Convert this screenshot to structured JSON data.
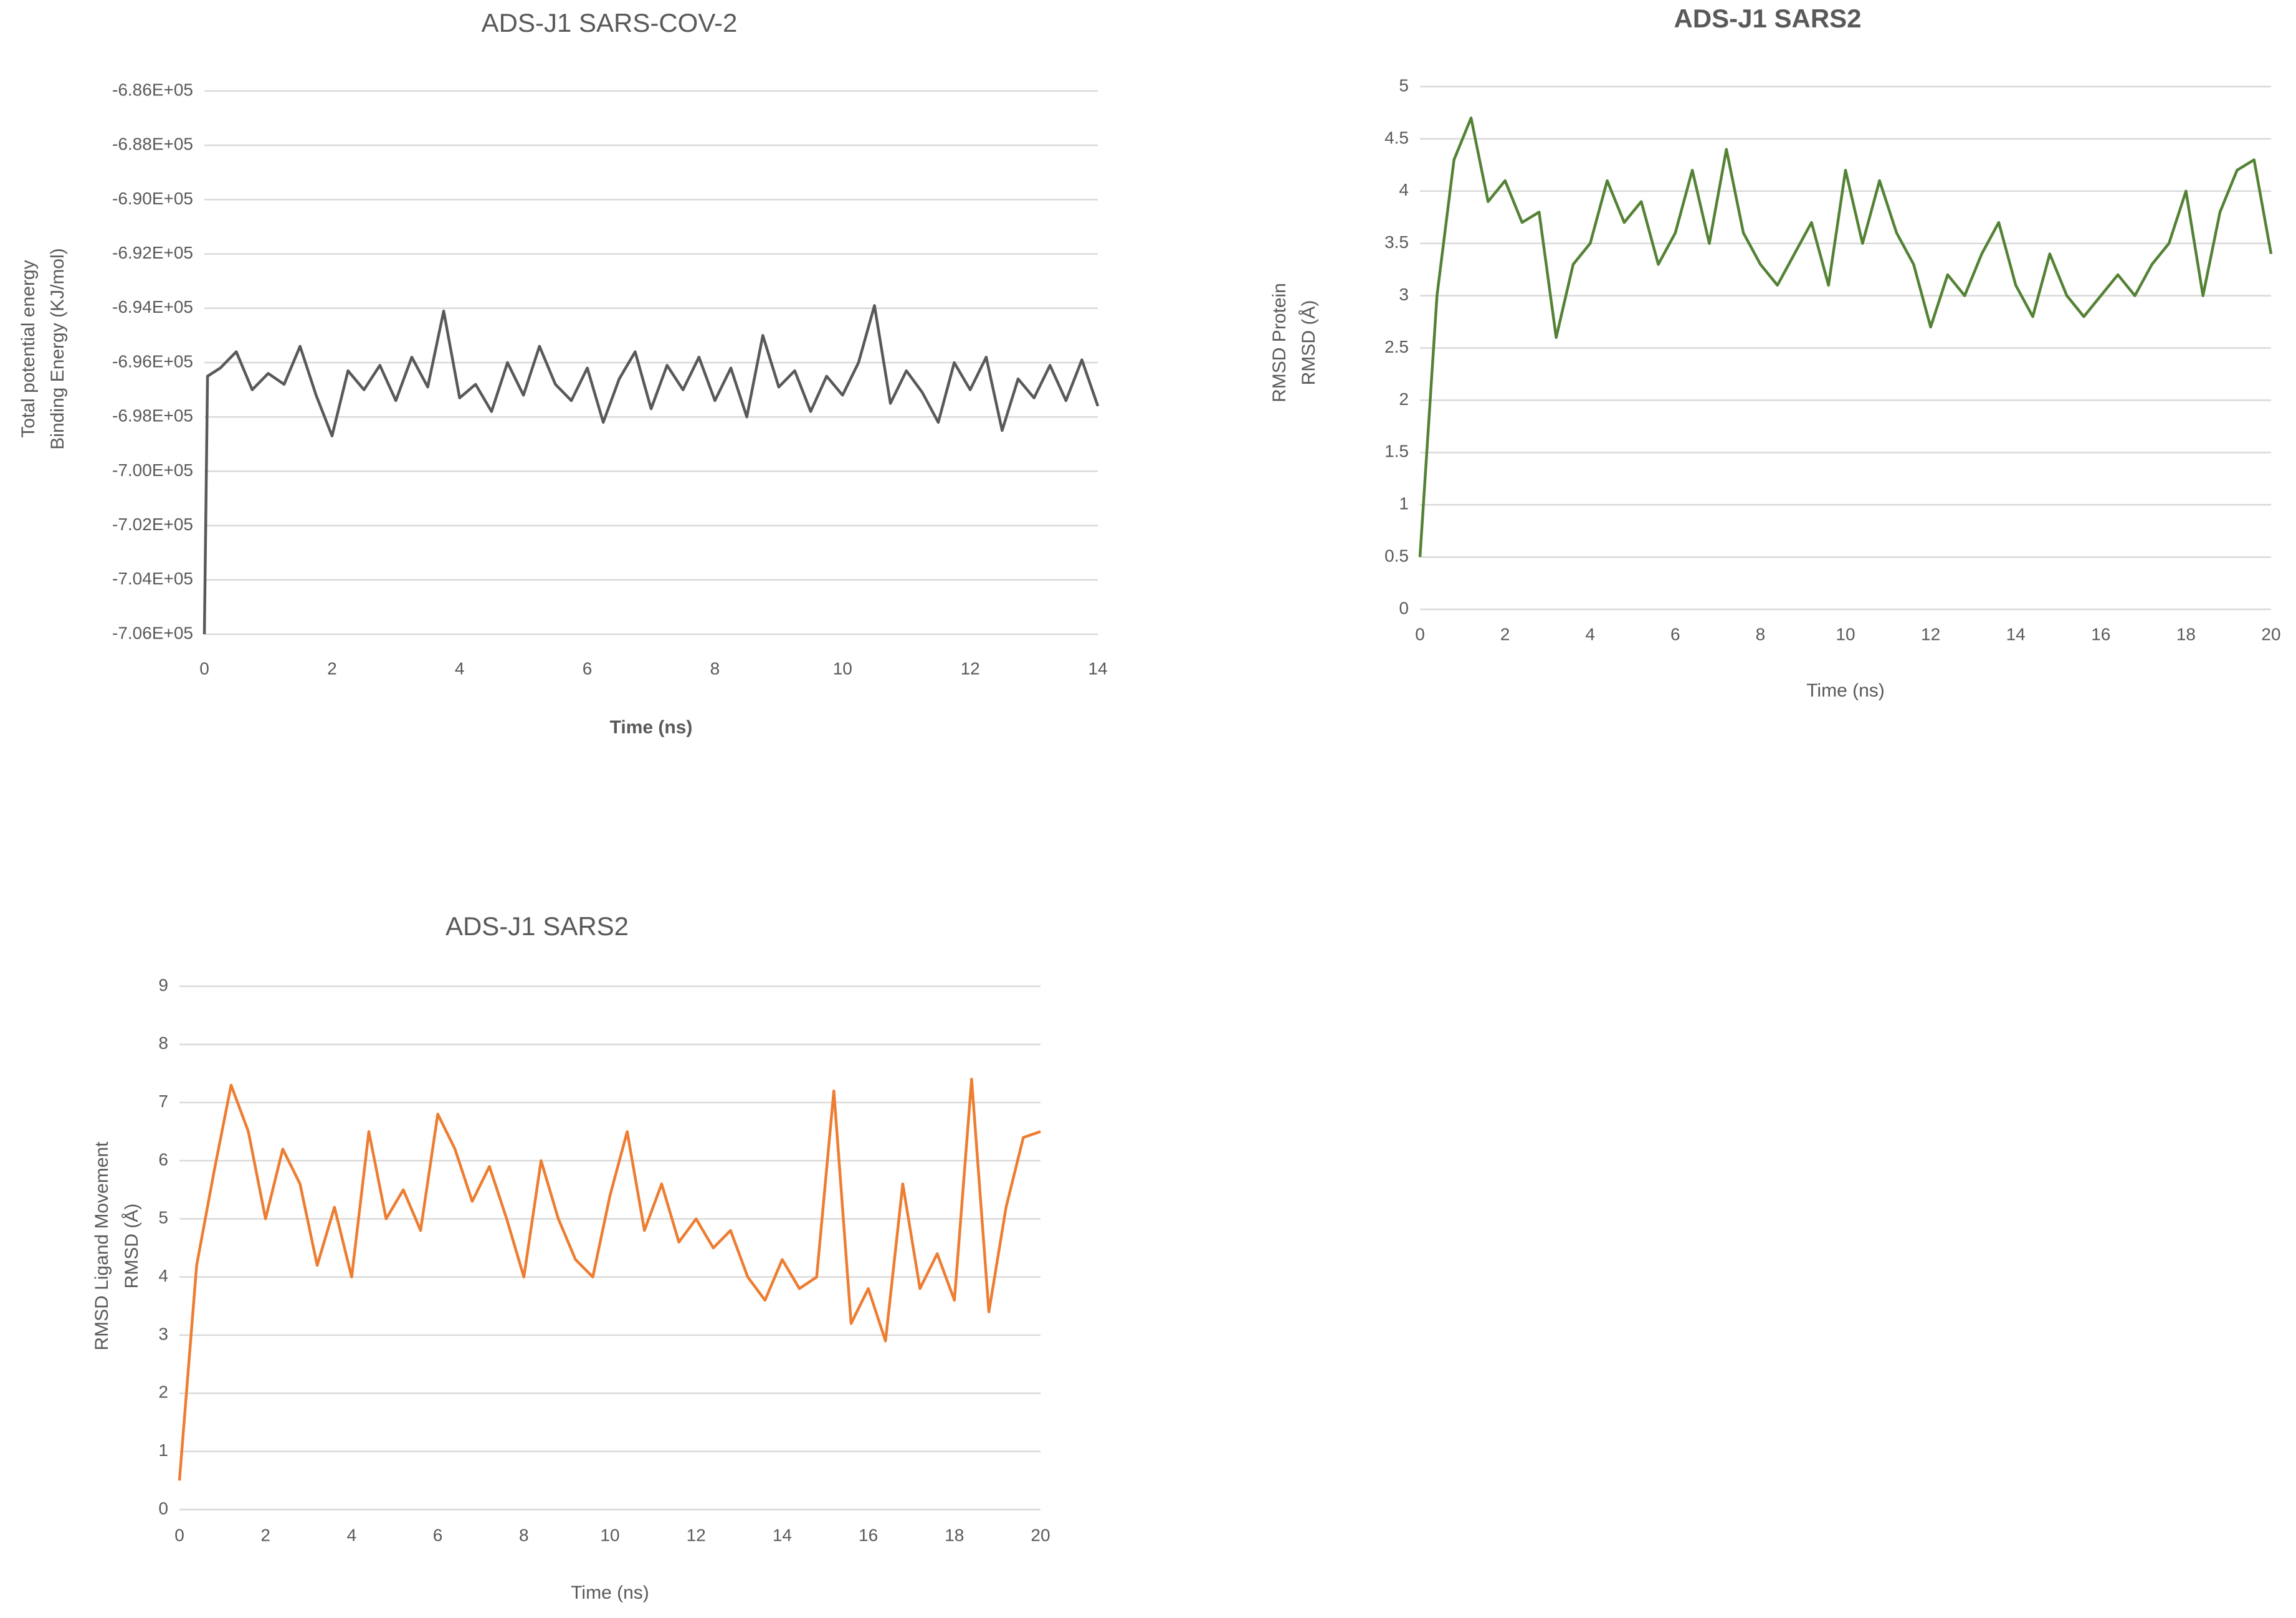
{
  "chart_data": [
    {
      "type": "line",
      "title": "ADS-J1 SARS-COV-2",
      "title_bold": false,
      "xlabel": "Time (ns)",
      "xlabel_bold": true,
      "ylabel": [
        "Total potential energy",
        "Binding Energy (KJ/mol)"
      ],
      "xlim": [
        0,
        14
      ],
      "xticks": [
        0,
        2,
        4,
        6,
        8,
        10,
        12,
        14
      ],
      "ylim": [
        -706000,
        -686000
      ],
      "yticks": [
        {
          "value": -706000,
          "label": "-7.06E+05"
        },
        {
          "value": -704000,
          "label": "-7.04E+05"
        },
        {
          "value": -702000,
          "label": "-7.02E+05"
        },
        {
          "value": -700000,
          "label": "-7.00E+05"
        },
        {
          "value": -698000,
          "label": "-6.98E+05"
        },
        {
          "value": -696000,
          "label": "-6.96E+05"
        },
        {
          "value": -694000,
          "label": "-6.94E+05"
        },
        {
          "value": -692000,
          "label": "-6.92E+05"
        },
        {
          "value": -690000,
          "label": "-6.90E+05"
        },
        {
          "value": -688000,
          "label": "-6.88E+05"
        },
        {
          "value": -686000,
          "label": "-6.86E+05"
        }
      ],
      "grid": true,
      "x": [
        0,
        0.05,
        0.25,
        0.5,
        0.75,
        1,
        1.25,
        1.5,
        1.75,
        2,
        2.25,
        2.5,
        2.75,
        3,
        3.25,
        3.5,
        3.75,
        4,
        4.25,
        4.5,
        4.75,
        5,
        5.25,
        5.5,
        5.75,
        6,
        6.25,
        6.5,
        6.75,
        7,
        7.25,
        7.5,
        7.75,
        8,
        8.25,
        8.5,
        8.75,
        9,
        9.25,
        9.5,
        9.75,
        10,
        10.25,
        10.5,
        10.75,
        11,
        11.25,
        11.5,
        11.75,
        12,
        12.25,
        12.5,
        12.75,
        13,
        13.25,
        13.5,
        13.75,
        14
      ],
      "series": [
        {
          "color": "#595959",
          "values": [
            -706000,
            -696500,
            -696200,
            -695600,
            -697000,
            -696400,
            -696800,
            -695400,
            -697200,
            -698700,
            -696300,
            -697000,
            -696100,
            -697400,
            -695800,
            -696900,
            -694100,
            -697300,
            -696800,
            -697800,
            -696000,
            -697200,
            -695400,
            -696800,
            -697400,
            -696200,
            -698200,
            -696600,
            -695600,
            -697700,
            -696100,
            -697000,
            -695800,
            -697400,
            -696200,
            -698000,
            -695000,
            -696900,
            -696300,
            -697800,
            -696500,
            -697200,
            -696000,
            -693900,
            -697500,
            -696300,
            -697100,
            -698200,
            -696000,
            -697000,
            -695800,
            -698500,
            -696600,
            -697300,
            -696100,
            -697400,
            -695900,
            -697600
          ]
        }
      ]
    },
    {
      "type": "line",
      "title": "ADS-J1 SARS2",
      "title_bold": true,
      "xlabel": "Time (ns)",
      "xlabel_bold": false,
      "ylabel": [
        "RMSD Protein",
        "RMSD (Å)"
      ],
      "xlim": [
        0,
        20
      ],
      "xticks": [
        0,
        2,
        4,
        6,
        8,
        10,
        12,
        14,
        16,
        18,
        20
      ],
      "ylim": [
        0,
        5
      ],
      "yticks": [
        0,
        0.5,
        1,
        1.5,
        2,
        2.5,
        3,
        3.5,
        4,
        4.5,
        5
      ],
      "grid": true,
      "x": [
        0,
        0.4,
        0.8,
        1.2,
        1.6,
        2,
        2.4,
        2.8,
        3.2,
        3.6,
        4,
        4.4,
        4.8,
        5.2,
        5.6,
        6,
        6.4,
        6.8,
        7.2,
        7.6,
        8,
        8.4,
        8.8,
        9.2,
        9.6,
        10,
        10.4,
        10.8,
        11.2,
        11.6,
        12,
        12.4,
        12.8,
        13.2,
        13.6,
        14,
        14.4,
        14.8,
        15.2,
        15.6,
        16,
        16.4,
        16.8,
        17.2,
        17.6,
        18,
        18.4,
        18.8,
        19.2,
        19.6,
        20
      ],
      "series": [
        {
          "color": "#548235",
          "values": [
            0.5,
            3.0,
            4.3,
            4.7,
            3.9,
            4.1,
            3.7,
            3.8,
            2.6,
            3.3,
            3.5,
            4.1,
            3.7,
            3.9,
            3.3,
            3.6,
            4.2,
            3.5,
            4.4,
            3.6,
            3.3,
            3.1,
            3.4,
            3.7,
            3.1,
            4.2,
            3.5,
            4.1,
            3.6,
            3.3,
            2.7,
            3.2,
            3.0,
            3.4,
            3.7,
            3.1,
            2.8,
            3.4,
            3.0,
            2.8,
            3.0,
            3.2,
            3.0,
            3.3,
            3.5,
            4.0,
            3.0,
            3.8,
            4.2,
            4.3,
            3.4
          ]
        }
      ]
    },
    {
      "type": "line",
      "title": "ADS-J1 SARS2",
      "title_bold": false,
      "xlabel": "Time (ns)",
      "xlabel_bold": false,
      "ylabel": [
        "RMSD Ligand Movement",
        "RMSD (Å)"
      ],
      "xlim": [
        0,
        20
      ],
      "xticks": [
        0,
        2,
        4,
        6,
        8,
        10,
        12,
        14,
        16,
        18,
        20
      ],
      "ylim": [
        0,
        9
      ],
      "yticks": [
        0,
        1,
        2,
        3,
        4,
        5,
        6,
        7,
        8,
        9
      ],
      "grid": true,
      "x": [
        0,
        0.4,
        0.8,
        1.2,
        1.6,
        2,
        2.4,
        2.8,
        3.2,
        3.6,
        4,
        4.4,
        4.8,
        5.2,
        5.6,
        6,
        6.4,
        6.8,
        7.2,
        7.6,
        8,
        8.4,
        8.8,
        9.2,
        9.6,
        10,
        10.4,
        10.8,
        11.2,
        11.6,
        12,
        12.4,
        12.8,
        13.2,
        13.6,
        14,
        14.4,
        14.8,
        15.2,
        15.6,
        16,
        16.4,
        16.8,
        17.2,
        17.6,
        18,
        18.4,
        18.8,
        19.2,
        19.6,
        20
      ],
      "series": [
        {
          "color": "#ed7d31",
          "values": [
            0.5,
            4.2,
            5.8,
            7.3,
            6.5,
            5.0,
            6.2,
            5.6,
            4.2,
            5.2,
            4.0,
            6.5,
            5.0,
            5.5,
            4.8,
            6.8,
            6.2,
            5.3,
            5.9,
            5.0,
            4.0,
            6.0,
            5.0,
            4.3,
            4.0,
            5.4,
            6.5,
            4.8,
            5.6,
            4.6,
            5.0,
            4.5,
            4.8,
            4.0,
            3.6,
            4.3,
            3.8,
            4.0,
            7.2,
            3.2,
            3.8,
            2.9,
            5.6,
            3.8,
            4.4,
            3.6,
            7.4,
            3.4,
            5.2,
            6.4,
            6.5
          ]
        }
      ]
    }
  ]
}
